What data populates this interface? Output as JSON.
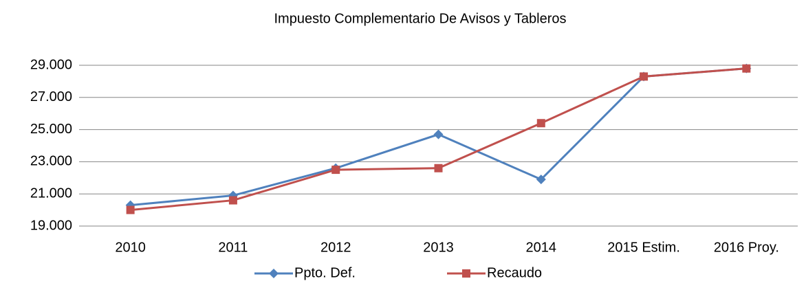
{
  "chart_data": {
    "type": "line",
    "title": "Impuesto Complementario De Avisos y Tableros",
    "categories": [
      "2010",
      "2011",
      "2012",
      "2013",
      "2014",
      "2015 Estim.",
      "2016 Proy."
    ],
    "series": [
      {
        "name": "Ppto. Def.",
        "color": "#4f81bd",
        "marker": "diamond",
        "values": [
          20300,
          20900,
          22600,
          24700,
          21900,
          28300,
          28800
        ]
      },
      {
        "name": "Recaudo",
        "color": "#c0504d",
        "marker": "square",
        "values": [
          20000,
          20600,
          22500,
          22600,
          25400,
          28300,
          28800
        ]
      }
    ],
    "ylim": [
      19000,
      29000
    ],
    "yticks": [
      {
        "value": 19000,
        "label": "19.000"
      },
      {
        "value": 21000,
        "label": "21.000"
      },
      {
        "value": 23000,
        "label": "23.000"
      },
      {
        "value": 25000,
        "label": "25.000"
      },
      {
        "value": 27000,
        "label": "27.000"
      },
      {
        "value": 29000,
        "label": "29.000"
      }
    ],
    "grid": true,
    "legend": "bottom"
  }
}
